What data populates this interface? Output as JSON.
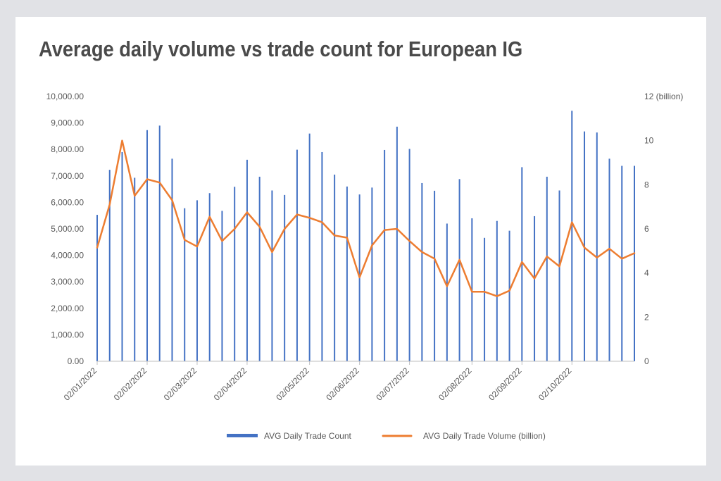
{
  "chart_data": {
    "type": "bar",
    "title": "Average daily volume vs trade count for European IG",
    "xlabel": "",
    "ylabel": "",
    "y2label": "",
    "ylim": [
      0,
      10000
    ],
    "y2lim": [
      0,
      12
    ],
    "grid": false,
    "legend_position": "bottom",
    "y_ticks": [
      "0.00",
      "1,000.00",
      "2,000.00",
      "3,000.00",
      "4,000.00",
      "5,000.00",
      "6,000.00",
      "7,000.00",
      "8,000.00",
      "9,000.00",
      "10,000.00"
    ],
    "y2_ticks": [
      "0",
      "2",
      "4",
      "6",
      "8",
      "10",
      "12 (billion)"
    ],
    "x_ticks": [
      "02/01/2022",
      "02/02/2022",
      "02/03/2022",
      "02/04/2022",
      "02/05/2022",
      "02/06/2022",
      "02/07/2022",
      "02/08/2022",
      "02/09/2022",
      "02/10/2022"
    ],
    "x_tick_week_index": [
      0,
      4,
      8,
      12,
      17,
      21,
      25,
      30,
      34,
      38
    ],
    "weeks": 43,
    "series": [
      {
        "name": "AVG Daily Trade Count",
        "type": "bar",
        "axis": "left",
        "color": "#4472c4",
        "values": [
          5530,
          7230,
          7900,
          6930,
          8730,
          8900,
          7650,
          5780,
          6080,
          6350,
          5680,
          6590,
          7610,
          6970,
          6450,
          6280,
          7990,
          8600,
          7900,
          7050,
          6600,
          6300,
          6560,
          7980,
          8860,
          8020,
          6730,
          6440,
          5200,
          6880,
          5400,
          4660,
          5300,
          4930,
          7330,
          5480,
          6970,
          6450,
          9460,
          8680,
          8640,
          7650,
          7380,
          7380
        ]
      },
      {
        "name": "AVG Daily Trade Volume  (billion)",
        "type": "line",
        "axis": "right",
        "color": "#ed7d31",
        "values": [
          5.15,
          7.1,
          10.0,
          7.5,
          8.25,
          8.1,
          7.3,
          5.5,
          5.2,
          6.55,
          5.45,
          6.0,
          6.75,
          6.1,
          4.95,
          6.0,
          6.65,
          6.5,
          6.3,
          5.7,
          5.6,
          3.8,
          5.25,
          5.95,
          6.0,
          5.45,
          4.95,
          4.65,
          3.4,
          4.6,
          3.15,
          3.15,
          2.95,
          3.2,
          4.5,
          3.75,
          4.75,
          4.3,
          6.3,
          5.15,
          4.7,
          5.1,
          4.65,
          4.9
        ]
      }
    ]
  }
}
